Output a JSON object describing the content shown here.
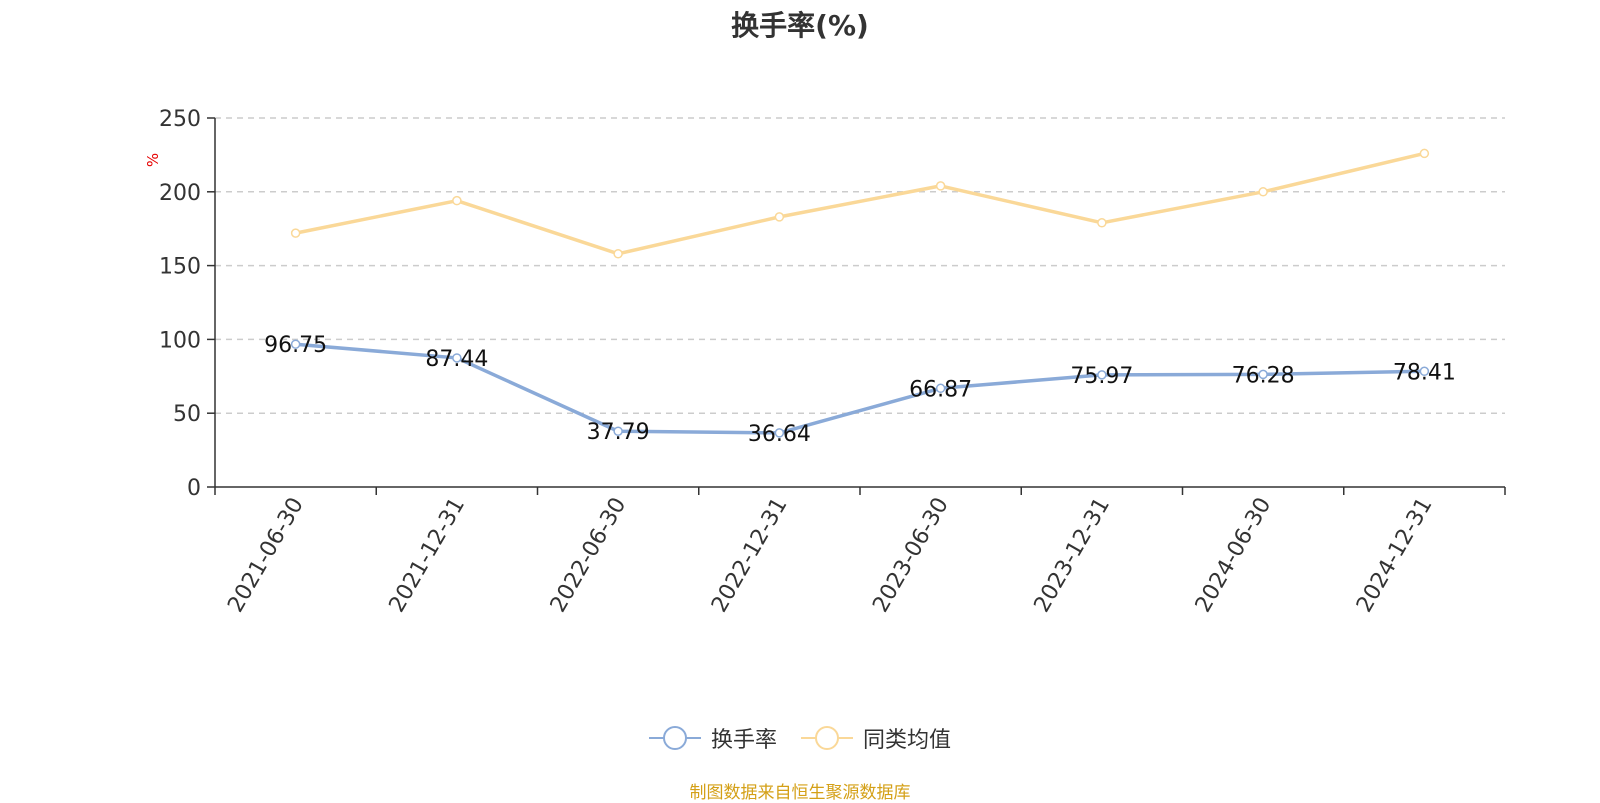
{
  "chart_data": {
    "type": "line",
    "title": "换手率(%)",
    "ylabel": "%",
    "xlabel": "",
    "categories": [
      "2021-06-30",
      "2021-12-31",
      "2022-06-30",
      "2022-12-31",
      "2023-06-30",
      "2023-12-31",
      "2024-06-30",
      "2024-12-31"
    ],
    "ylim": [
      0,
      250
    ],
    "yticks": [
      0,
      50,
      100,
      150,
      200,
      250
    ],
    "grid": true,
    "legend_position": "bottom",
    "series": [
      {
        "name": "换手率",
        "color": "#8aaad8",
        "show_labels": true,
        "values": [
          96.75,
          87.44,
          37.79,
          36.64,
          66.87,
          75.97,
          76.28,
          78.41
        ]
      },
      {
        "name": "同类均值",
        "color": "#fad898",
        "show_labels": false,
        "values": [
          172,
          194,
          158,
          183,
          204,
          179,
          200,
          226
        ]
      }
    ]
  },
  "source_note": "制图数据来自恒生聚源数据库"
}
